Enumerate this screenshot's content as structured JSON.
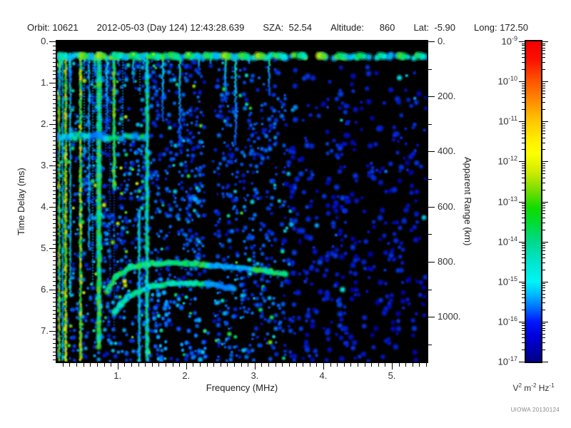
{
  "header": {
    "segments": [
      "Orbit: 10621",
      "2012-05-03 (Day 124) 12:43:28.639",
      "SZA:  52.54",
      "Altitude:      860",
      "Lat:  -5.90",
      "Long: 172.50"
    ]
  },
  "credit": "UIOWA 20130124",
  "chart_data": {
    "type": "heatmap",
    "description": "Radar sounder ionogram: received spectral density versus frequency and time delay",
    "x_axis": {
      "label": "Frequency (MHz)",
      "min": 0.118,
      "max": 5.51,
      "major_ticks": [
        1,
        2,
        3,
        4,
        5
      ],
      "tick_labels": [
        "1.",
        "2.",
        "3.",
        "4.",
        "5."
      ],
      "minor_step": 0.1
    },
    "y_axis_left": {
      "label": "Time Delay (ms)",
      "min": 0,
      "max": 7.75,
      "major_ticks": [
        0,
        1,
        2,
        3,
        4,
        5,
        6,
        7
      ],
      "tick_labels": [
        "0.",
        "1.",
        "2.",
        "3.",
        "4.",
        "5.",
        "6.",
        "7."
      ],
      "minor_step": 0.1
    },
    "y_axis_right": {
      "label": "Apparent Range (km)",
      "km_per_ms": 150,
      "major_ticks": [
        0,
        200,
        400,
        600,
        800,
        1000
      ],
      "tick_labels": [
        "0.",
        "200.",
        "400.",
        "600.",
        "800.",
        "1000."
      ],
      "minor_step": 100
    },
    "colorbar": {
      "scale": "log",
      "min": 1e-17,
      "max": 1e-09,
      "base": "10",
      "exponents": [
        "-9",
        "-10",
        "-11",
        "-12",
        "-13",
        "-14",
        "-15",
        "-16",
        "-17"
      ],
      "units": [
        {
          "b": "V",
          "s": "2"
        },
        {
          "b": "m",
          "s": "-2"
        },
        {
          "b": "Hz",
          "s": "-1"
        }
      ],
      "gradient": [
        [
          0,
          "#f40000"
        ],
        [
          0.055,
          "#fb0f00"
        ],
        [
          0.125,
          "#ff5500"
        ],
        [
          0.19,
          "#ff9000"
        ],
        [
          0.25,
          "#ffc800"
        ],
        [
          0.315,
          "#fff200"
        ],
        [
          0.35,
          "#ffff00"
        ],
        [
          0.41,
          "#cdeb00"
        ],
        [
          0.47,
          "#6fdd00"
        ],
        [
          0.52,
          "#10dc00"
        ],
        [
          0.565,
          "#00dc30"
        ],
        [
          0.625,
          "#00d98b"
        ],
        [
          0.69,
          "#00e5cf"
        ],
        [
          0.75,
          "#00f5f5"
        ],
        [
          0.79,
          "#00baff"
        ],
        [
          0.84,
          "#0060ff"
        ],
        [
          0.875,
          "#0018ff"
        ],
        [
          0.92,
          "#0000dc"
        ],
        [
          1,
          "#000085"
        ]
      ]
    },
    "palette": [
      [
        0,
        "#000028"
      ],
      [
        0.22,
        "#0000aa"
      ],
      [
        0.4,
        "#0030e8"
      ],
      [
        0.55,
        "#0070ff"
      ],
      [
        0.68,
        "#00b4ff"
      ],
      [
        0.78,
        "#00e8e0"
      ],
      [
        0.87,
        "#00df5f"
      ],
      [
        0.94,
        "#8ae000"
      ],
      [
        1,
        "#eef000"
      ]
    ],
    "features": {
      "blank_region": {
        "d0": 0,
        "d1": 0.25
      },
      "surface_echo_band": {
        "f0": 0.118,
        "f1": 5.51,
        "d0": 0.25,
        "d1": 0.5,
        "continuous_below_mhz": 3.3
      },
      "interference_band": {
        "f0": 0.118,
        "f1": 1.42,
        "d0": 2.12,
        "d1": 2.5
      },
      "interference_lines": [
        {
          "f": 0.15,
          "v": 0.9,
          "w": 2.2,
          "d0": 0.3,
          "d1": 7.75
        },
        {
          "f": 0.2,
          "v": 0.7,
          "w": 2.0,
          "d0": 0.3,
          "d1": 7.75
        },
        {
          "f": 0.243,
          "v": 0.95,
          "w": 2.6,
          "d0": 0.3,
          "d1": 7.75
        },
        {
          "f": 0.31,
          "v": 0.72,
          "w": 2.0,
          "d0": 0.3,
          "d1": 6.2
        },
        {
          "f": 0.46,
          "v": 0.93,
          "w": 2.6,
          "d0": 0.3,
          "d1": 7.75
        },
        {
          "f": 0.585,
          "v": 0.68,
          "w": 2.0,
          "d0": 0.3,
          "d1": 5.0
        },
        {
          "f": 0.73,
          "v": 0.85,
          "w": 4.0,
          "d0": 0.3,
          "d1": 7.4
        },
        {
          "f": 0.95,
          "v": 0.87,
          "w": 2.8,
          "d0": 0.3,
          "d1": 3.6
        },
        {
          "f": 1.315,
          "v": 0.74,
          "w": 2.6,
          "d0": 4.1,
          "d1": 7.75
        },
        {
          "f": 1.43,
          "v": 0.8,
          "w": 3.2,
          "d0": 0.3,
          "d1": 7.75
        }
      ],
      "vertical_streaks": {
        "f0": 0.13,
        "f1": 3.3,
        "max_len_ms": 2.3
      },
      "ionospheric_echo_traces": [
        {
          "intensity": "strong",
          "points": [
            [
              0.85,
              6.05
            ],
            [
              0.98,
              5.68
            ],
            [
              1.2,
              5.47
            ],
            [
              1.5,
              5.37
            ],
            [
              2.0,
              5.36
            ],
            [
              2.45,
              5.44
            ],
            [
              3.0,
              5.52
            ],
            [
              3.45,
              5.63
            ]
          ]
        },
        {
          "intensity": "medium",
          "points": [
            [
              0.95,
              6.55
            ],
            [
              1.15,
              6.18
            ],
            [
              1.45,
              5.95
            ],
            [
              1.8,
              5.85
            ],
            [
              2.3,
              5.87
            ],
            [
              2.7,
              5.97
            ]
          ]
        }
      ],
      "noise_regions": [
        {
          "f0": 0.118,
          "f1": 1.45,
          "d0": 0.45,
          "d1": 7.75,
          "density": 0.62,
          "vmin": 0.3,
          "vmax": 0.66,
          "bright": 0.16
        },
        {
          "f0": 1.45,
          "f1": 2.28,
          "d0": 0.45,
          "d1": 7.75,
          "density": 0.5,
          "vmin": 0.28,
          "vmax": 0.58,
          "bright": 0.1
        },
        {
          "f0": 2.28,
          "f1": 2.42,
          "d0": 0.45,
          "d1": 7.75,
          "density": 0.07,
          "vmin": 0.25,
          "vmax": 0.45,
          "bright": 0.02
        },
        {
          "f0": 2.42,
          "f1": 3.45,
          "d0": 0.45,
          "d1": 7.75,
          "density": 0.5,
          "vmin": 0.28,
          "vmax": 0.58,
          "bright": 0.1
        },
        {
          "f0": 3.45,
          "f1": 4.35,
          "d0": 0.45,
          "d1": 7.75,
          "density": 0.32,
          "vmin": 0.24,
          "vmax": 0.46,
          "bright": 0.05,
          "ramp": 1
        },
        {
          "f0": 4.35,
          "f1": 5.51,
          "d0": 0.45,
          "d1": 7.75,
          "density": 0.24,
          "vmin": 0.22,
          "vmax": 0.42,
          "bright": 0.04,
          "ramp": 1
        },
        {
          "f0": 1.45,
          "f1": 2.85,
          "d0": 5.75,
          "d1": 7.75,
          "density": 0.2,
          "vmin": 0.5,
          "vmax": 0.74,
          "bright": 0.05
        },
        {
          "f0": 1.6,
          "f1": 2.25,
          "d0": 3.2,
          "d1": 5.3,
          "density": 0.13,
          "vmin": 0.48,
          "vmax": 0.7,
          "bright": 0.04
        }
      ]
    }
  }
}
